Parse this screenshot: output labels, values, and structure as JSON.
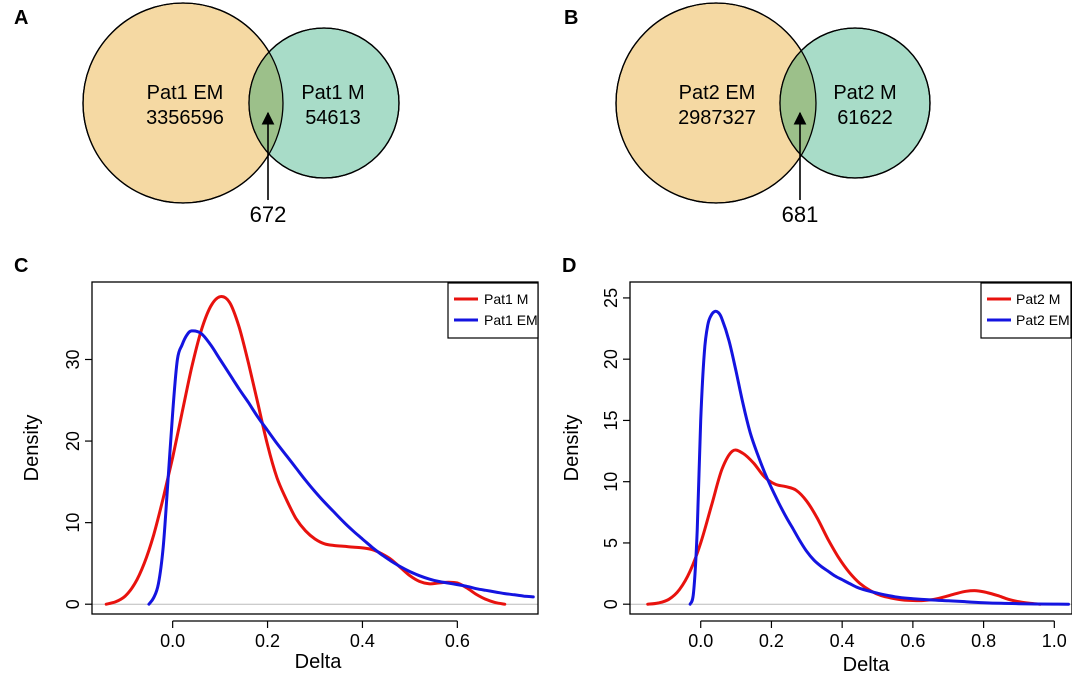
{
  "venn": [
    {
      "panel": "A",
      "left_label": "Pat1 EM",
      "left_value": "3356596",
      "right_label": "Pat1 M",
      "right_value": "54613",
      "overlap": "672"
    },
    {
      "panel": "B",
      "left_label": "Pat2 EM",
      "left_value": "2987327",
      "right_label": "Pat2 M",
      "right_value": "61622",
      "overlap": "681"
    }
  ],
  "colors": {
    "em_fill": "#f5d9a3",
    "m_fill": "#a8dcc8",
    "overlap_fill": "#9cc08a",
    "red": "#e8120e",
    "blue": "#1414e0",
    "axis": "#000000",
    "baseline": "#bbbbbb"
  },
  "chart_data": [
    {
      "panel": "C",
      "type": "line",
      "xlabel": "Delta",
      "ylabel": "Density",
      "xlim": [
        -0.17,
        0.77
      ],
      "ylim": [
        -1.2,
        39.5
      ],
      "xticks": [
        "0.0",
        "0.2",
        "0.4",
        "0.6"
      ],
      "yticks": [
        "0",
        "10",
        "20",
        "30"
      ],
      "legend_position": "top-right",
      "series": [
        {
          "name": "Pat1 M",
          "color": "red",
          "x": [
            -0.14,
            -0.12,
            -0.1,
            -0.08,
            -0.06,
            -0.04,
            -0.02,
            0.0,
            0.02,
            0.04,
            0.06,
            0.08,
            0.1,
            0.12,
            0.14,
            0.16,
            0.18,
            0.2,
            0.22,
            0.24,
            0.26,
            0.28,
            0.3,
            0.32,
            0.34,
            0.36,
            0.38,
            0.4,
            0.42,
            0.44,
            0.46,
            0.48,
            0.5,
            0.52,
            0.54,
            0.56,
            0.58,
            0.6,
            0.62,
            0.64,
            0.66,
            0.68,
            0.7
          ],
          "y": [
            0.0,
            0.3,
            1.0,
            2.5,
            5.0,
            8.5,
            13.0,
            18.0,
            23.5,
            29.0,
            33.5,
            36.5,
            37.7,
            37.0,
            34.0,
            29.5,
            24.5,
            19.5,
            15.5,
            12.8,
            10.5,
            9.0,
            8.0,
            7.4,
            7.2,
            7.1,
            7.0,
            6.9,
            6.7,
            6.2,
            5.5,
            4.5,
            3.5,
            2.8,
            2.5,
            2.6,
            2.7,
            2.6,
            2.0,
            1.2,
            0.6,
            0.2,
            0.0
          ]
        },
        {
          "name": "Pat1 EM",
          "color": "blue",
          "x": [
            -0.05,
            -0.04,
            -0.03,
            -0.02,
            -0.01,
            0.0,
            0.01,
            0.02,
            0.03,
            0.04,
            0.06,
            0.08,
            0.1,
            0.12,
            0.14,
            0.16,
            0.18,
            0.2,
            0.22,
            0.24,
            0.26,
            0.28,
            0.3,
            0.32,
            0.34,
            0.36,
            0.38,
            0.4,
            0.42,
            0.44,
            0.46,
            0.48,
            0.5,
            0.52,
            0.54,
            0.56,
            0.58,
            0.6,
            0.62,
            0.64,
            0.66,
            0.68,
            0.7,
            0.72,
            0.74,
            0.76
          ],
          "y": [
            0.0,
            0.8,
            2.5,
            7.0,
            15.0,
            23.5,
            30.0,
            31.8,
            33.0,
            33.5,
            33.2,
            31.8,
            30.0,
            28.2,
            26.4,
            24.7,
            22.9,
            21.3,
            19.7,
            18.2,
            16.7,
            15.2,
            13.8,
            12.5,
            11.3,
            10.1,
            9.0,
            8.0,
            7.0,
            6.1,
            5.3,
            4.6,
            4.0,
            3.5,
            3.1,
            2.8,
            2.6,
            2.4,
            2.2,
            1.9,
            1.7,
            1.5,
            1.3,
            1.15,
            1.0,
            0.9
          ]
        }
      ]
    },
    {
      "panel": "D",
      "type": "line",
      "xlabel": "Delta",
      "ylabel": "Density",
      "xlim": [
        -0.2,
        1.05
      ],
      "ylim": [
        -0.8,
        26.3
      ],
      "xticks": [
        "0.0",
        "0.2",
        "0.4",
        "0.6",
        "0.8",
        "1.0"
      ],
      "yticks": [
        "0",
        "5",
        "10",
        "15",
        "20",
        "25"
      ],
      "legend_position": "top-right",
      "series": [
        {
          "name": "Pat2 M",
          "color": "red",
          "x": [
            -0.15,
            -0.12,
            -0.09,
            -0.06,
            -0.03,
            0.0,
            0.03,
            0.06,
            0.09,
            0.12,
            0.15,
            0.18,
            0.21,
            0.24,
            0.27,
            0.3,
            0.33,
            0.36,
            0.39,
            0.42,
            0.45,
            0.48,
            0.51,
            0.54,
            0.57,
            0.6,
            0.63,
            0.66,
            0.69,
            0.72,
            0.75,
            0.78,
            0.81,
            0.84,
            0.87,
            0.9,
            0.93,
            0.96
          ],
          "y": [
            0.0,
            0.1,
            0.4,
            1.2,
            2.7,
            5.0,
            8.0,
            11.0,
            12.5,
            12.3,
            11.5,
            10.4,
            9.8,
            9.6,
            9.3,
            8.4,
            7.0,
            5.3,
            3.8,
            2.6,
            1.7,
            1.1,
            0.7,
            0.5,
            0.35,
            0.3,
            0.3,
            0.4,
            0.6,
            0.85,
            1.05,
            1.1,
            0.95,
            0.7,
            0.4,
            0.2,
            0.08,
            0.0
          ]
        },
        {
          "name": "Pat2 EM",
          "color": "blue",
          "x": [
            -0.03,
            -0.02,
            -0.01,
            0.0,
            0.01,
            0.02,
            0.03,
            0.04,
            0.05,
            0.06,
            0.08,
            0.1,
            0.12,
            0.14,
            0.16,
            0.18,
            0.2,
            0.22,
            0.24,
            0.26,
            0.28,
            0.3,
            0.32,
            0.34,
            0.36,
            0.38,
            0.4,
            0.42,
            0.44,
            0.46,
            0.5,
            0.55,
            0.6,
            0.65,
            0.7,
            0.75,
            0.8,
            0.85,
            0.9,
            0.95,
            1.0,
            1.04
          ],
          "y": [
            0.0,
            1.0,
            6.0,
            15.0,
            20.5,
            22.8,
            23.6,
            23.9,
            23.8,
            23.3,
            21.5,
            19.0,
            16.3,
            14.0,
            12.3,
            10.8,
            9.5,
            8.3,
            7.2,
            6.2,
            5.2,
            4.3,
            3.6,
            3.1,
            2.7,
            2.3,
            2.0,
            1.7,
            1.4,
            1.2,
            0.9,
            0.6,
            0.45,
            0.35,
            0.28,
            0.2,
            0.12,
            0.07,
            0.04,
            0.02,
            0.01,
            0.0
          ]
        }
      ]
    }
  ]
}
